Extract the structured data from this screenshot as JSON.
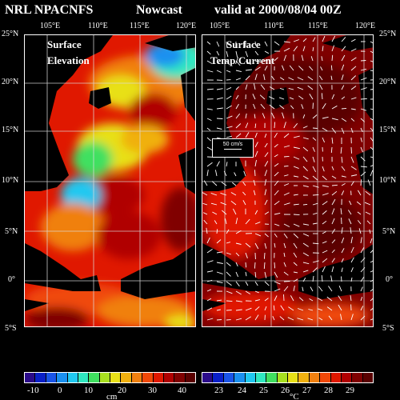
{
  "header": {
    "model": "NRL NPACNFS",
    "product": "Nowcast",
    "valid": "valid at 2000/08/04 00Z"
  },
  "lon_labels": [
    "105°E",
    "110°E",
    "115°E",
    "120°E"
  ],
  "lat_labels_left": [
    "25°N",
    "20°N",
    "15°N",
    "10°N",
    "5°N",
    "0°",
    "5°S"
  ],
  "lat_labels_right": [
    "25°N",
    "20°N",
    "15°N",
    "10°N",
    "5°N",
    "0°",
    "5°S"
  ],
  "left_panel": {
    "title_line1": "Surface",
    "title_line2": "Elevation",
    "colorbar_ticks": [
      "-10",
      "0",
      "10",
      "20",
      "30",
      "40"
    ],
    "unit": "cm"
  },
  "right_panel": {
    "title_line1": "Surface",
    "title_line2": "Temp/Current",
    "scale_label": "50 cm/s",
    "colorbar_ticks": [
      "23",
      "24",
      "25",
      "26",
      "27",
      "28",
      "29"
    ],
    "unit": "°C"
  },
  "colors": {
    "elev": [
      "#2b0b8a",
      "#0a20c8",
      "#1a55e8",
      "#1a90f0",
      "#20c8f0",
      "#30e8c0",
      "#40e060",
      "#a8e020",
      "#e8e018",
      "#f0b010",
      "#f08010",
      "#f04808",
      "#e01800",
      "#b00000",
      "#800000",
      "#5a0000"
    ],
    "temp": [
      "#2b0b8a",
      "#0a20c8",
      "#1a55e8",
      "#1a90f0",
      "#20c8f0",
      "#30e8c0",
      "#40e060",
      "#a8e020",
      "#e8e018",
      "#f0b010",
      "#f08010",
      "#f04808",
      "#e01800",
      "#b00000",
      "#800000",
      "#5a0000"
    ]
  }
}
